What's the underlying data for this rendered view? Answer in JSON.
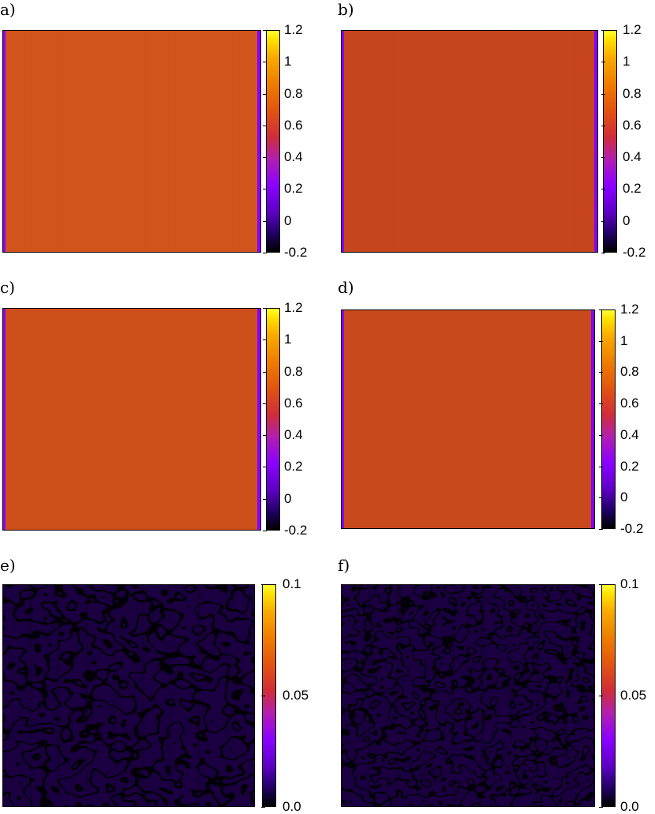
{
  "panels": [
    {
      "label": "a)",
      "colorbar": {
        "ticks": [
          "1.2",
          "1",
          "0.8",
          "0.6",
          "0.4",
          "0.2",
          "0",
          "-0.2"
        ],
        "range": [
          -0.2,
          1.2
        ]
      }
    },
    {
      "label": "b)",
      "colorbar": {
        "ticks": [
          "1.2",
          "1",
          "0.8",
          "0.6",
          "0.4",
          "0.2",
          "0",
          "-0.2"
        ],
        "range": [
          -0.2,
          1.2
        ]
      }
    },
    {
      "label": "c)",
      "colorbar": {
        "ticks": [
          "1.2",
          "1",
          "0.8",
          "0.6",
          "0.4",
          "0.2",
          "0",
          "-0.2"
        ],
        "range": [
          -0.2,
          1.2
        ]
      }
    },
    {
      "label": "d)",
      "colorbar": {
        "ticks": [
          "1.2",
          "1",
          "0.8",
          "0.6",
          "0.4",
          "0.2",
          "0",
          "-0.2"
        ],
        "range": [
          -0.2,
          1.2
        ]
      }
    },
    {
      "label": "e)",
      "colorbar": {
        "ticks": [
          "0.1",
          "0.05",
          "0.0"
        ],
        "range": [
          0.0,
          0.1
        ]
      }
    },
    {
      "label": "f)",
      "colorbar": {
        "ticks": [
          "0.1",
          "0.05",
          "0.0"
        ],
        "range": [
          0.0,
          0.1
        ]
      }
    }
  ],
  "chart_data": [
    {
      "type": "heatmap",
      "panel": "a)",
      "colorbar_range": [
        -0.2,
        1.2
      ],
      "colormap": "black-purple-red-orange-yellow",
      "dominant_value": 0.8
    },
    {
      "type": "heatmap",
      "panel": "b)",
      "colorbar_range": [
        -0.2,
        1.2
      ],
      "colormap": "black-purple-red-orange-yellow",
      "dominant_value": 0.8
    },
    {
      "type": "heatmap",
      "panel": "c)",
      "colorbar_range": [
        -0.2,
        1.2
      ],
      "colormap": "black-purple-red-orange-yellow",
      "dominant_value": 0.85
    },
    {
      "type": "heatmap",
      "panel": "d)",
      "colorbar_range": [
        -0.2,
        1.2
      ],
      "colormap": "black-purple-red-orange-yellow",
      "dominant_value": 0.85
    },
    {
      "type": "heatmap",
      "panel": "e)",
      "colorbar_range": [
        0.0,
        0.1
      ],
      "colormap": "black-purple-red-orange-yellow",
      "dominant_value": 0.03
    },
    {
      "type": "heatmap",
      "panel": "f)",
      "colorbar_range": [
        0.0,
        0.1
      ],
      "colormap": "black-purple-red-orange-yellow",
      "dominant_value": 0.025
    }
  ]
}
